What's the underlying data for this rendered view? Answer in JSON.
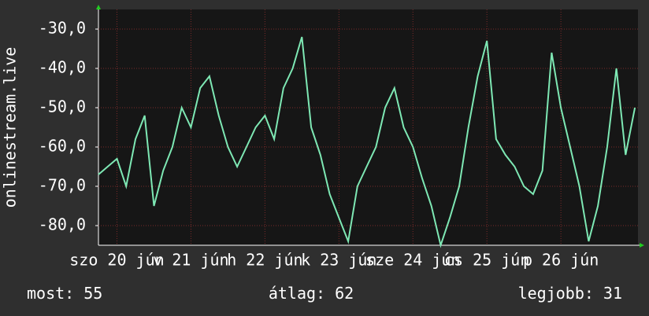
{
  "chart_data": {
    "type": "line",
    "ylabel": "onlinestream.live",
    "x": [
      0,
      3,
      6,
      9,
      12,
      15,
      18,
      21,
      24,
      27,
      30,
      33,
      36,
      39,
      42,
      45,
      48,
      51,
      54,
      57,
      60,
      63,
      66,
      69,
      72,
      75,
      78,
      81,
      84,
      87,
      90,
      93,
      96,
      99,
      102,
      105,
      108,
      111,
      114,
      117,
      120,
      123,
      126,
      129,
      132,
      135,
      138,
      141,
      144,
      147,
      150,
      153,
      156,
      159,
      162,
      165,
      168,
      171,
      174
    ],
    "series": [
      {
        "name": "onlinestream.live",
        "color": "#7ee8b4",
        "values": [
          -67,
          -65,
          -63,
          -70,
          -58,
          -52,
          -75,
          -66,
          -60,
          -50,
          -55,
          -45,
          -42,
          -52,
          -60,
          -65,
          -60,
          -55,
          -52,
          -58,
          -45,
          -40,
          -32,
          -55,
          -62,
          -72,
          -78,
          -84,
          -70,
          -65,
          -60,
          -50,
          -45,
          -55,
          -60,
          -68,
          -75,
          -85,
          -78,
          -70,
          -55,
          -42,
          -33,
          -58,
          -62,
          -65,
          -70,
          -72,
          -66,
          -36,
          -50,
          -60,
          -70,
          -84,
          -75,
          -60,
          -40,
          -62,
          -50
        ]
      }
    ],
    "xlim": [
      0,
      175
    ],
    "xticks": [
      {
        "value": 6,
        "label": "szo 20 jún"
      },
      {
        "value": 30,
        "label": "v 21 jún"
      },
      {
        "value": 54,
        "label": "h 22 jún"
      },
      {
        "value": 78,
        "label": "k 23 jún"
      },
      {
        "value": 102,
        "label": "sze 24 jún"
      },
      {
        "value": 126,
        "label": "cs 25 jún"
      },
      {
        "value": 150,
        "label": "p 26 jún"
      }
    ],
    "ylim": [
      -85,
      -25
    ],
    "yticks": [
      {
        "value": -80,
        "label": "-80,0"
      },
      {
        "value": -70,
        "label": "-70,0"
      },
      {
        "value": -60,
        "label": "-60,0"
      },
      {
        "value": -50,
        "label": "-50,0"
      },
      {
        "value": -40,
        "label": "-40,0"
      },
      {
        "value": -30,
        "label": "-30,0"
      }
    ],
    "grid": true,
    "stats": [
      {
        "label": "most:",
        "value": 55
      },
      {
        "label": "átlag:",
        "value": 62
      },
      {
        "label": "legjobb:",
        "value": 31
      }
    ]
  }
}
